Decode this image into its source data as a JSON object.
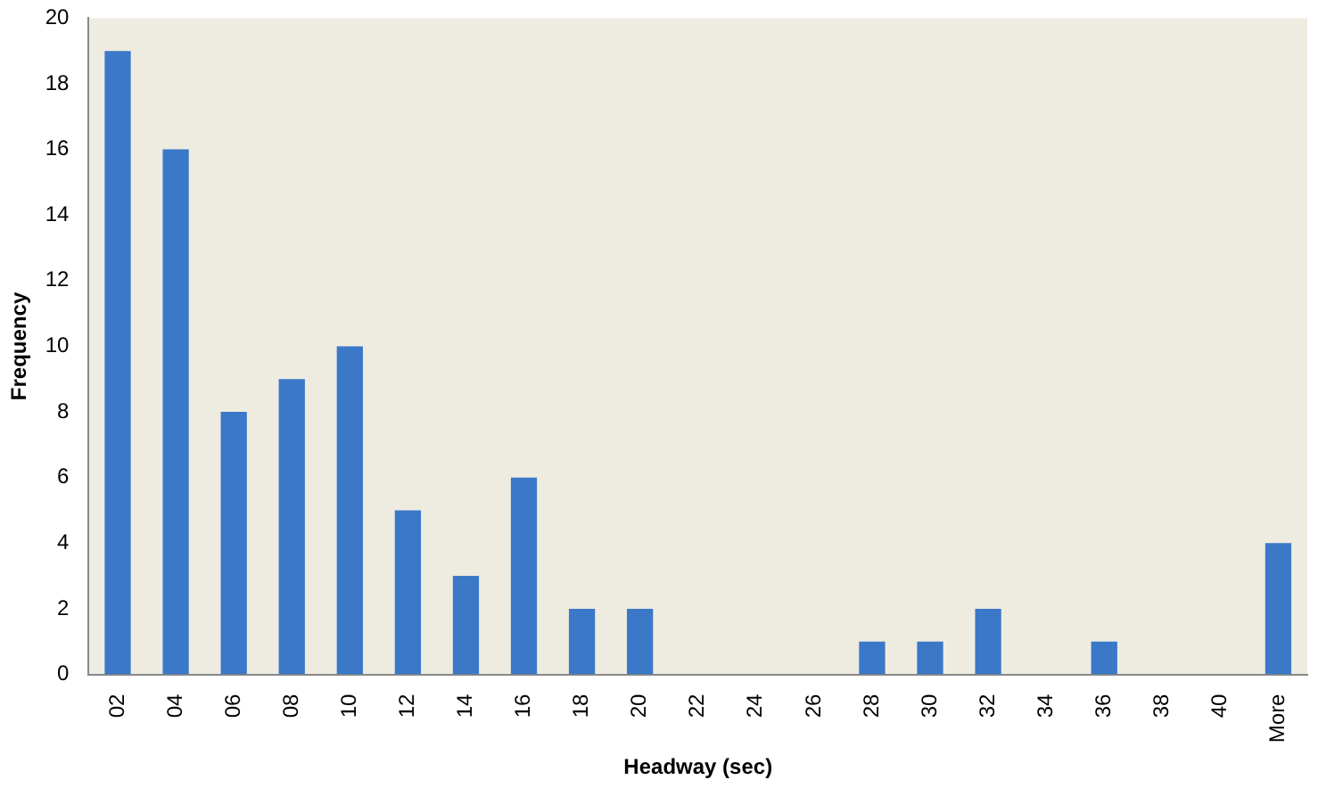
{
  "chart_data": {
    "type": "bar",
    "xlabel": "Headway (sec)",
    "ylabel": "Frequency",
    "categories": [
      "02",
      "04",
      "06",
      "08",
      "10",
      "12",
      "14",
      "16",
      "18",
      "20",
      "22",
      "24",
      "26",
      "28",
      "30",
      "32",
      "34",
      "36",
      "38",
      "40",
      "More"
    ],
    "values": [
      19,
      16,
      8,
      9,
      10,
      5,
      3,
      6,
      2,
      2,
      0,
      0,
      0,
      1,
      1,
      2,
      0,
      1,
      0,
      0,
      4
    ],
    "color": "#3b78c8",
    "ylim": [
      0,
      20
    ],
    "yticks": [
      0,
      2,
      4,
      6,
      8,
      10,
      12,
      14,
      16,
      18,
      20
    ],
    "grid": false,
    "legend": false
  }
}
